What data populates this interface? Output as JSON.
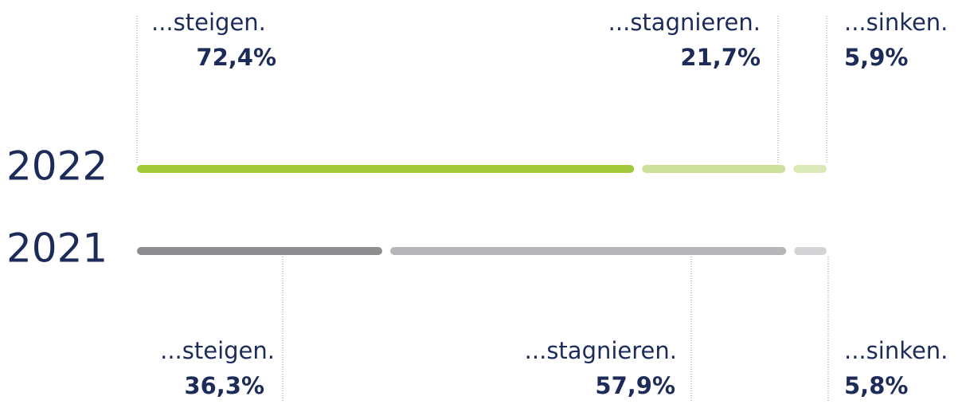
{
  "chart_data": {
    "type": "bar",
    "orientation": "horizontal",
    "stacked": true,
    "categories": [
      "2022",
      "2021"
    ],
    "xlim": [
      0,
      100
    ],
    "series": [
      {
        "name": "...steigen.",
        "colors": [
          "#a3c93a",
          "#8d8d8f"
        ],
        "values": [
          72.4,
          36.3
        ],
        "value_labels": [
          "72,4%",
          "36,3%"
        ]
      },
      {
        "name": "...stagnieren.",
        "colors": [
          "#cde09b",
          "#b6b6b8"
        ],
        "values": [
          21.7,
          57.9
        ],
        "value_labels": [
          "21,7%",
          "57,9%"
        ]
      },
      {
        "name": "...sinken.",
        "colors": [
          "#dbe9b9",
          "#d3d3d5"
        ],
        "values": [
          5.9,
          5.8
        ],
        "value_labels": [
          "5,9%",
          "5,8%"
        ]
      }
    ]
  }
}
